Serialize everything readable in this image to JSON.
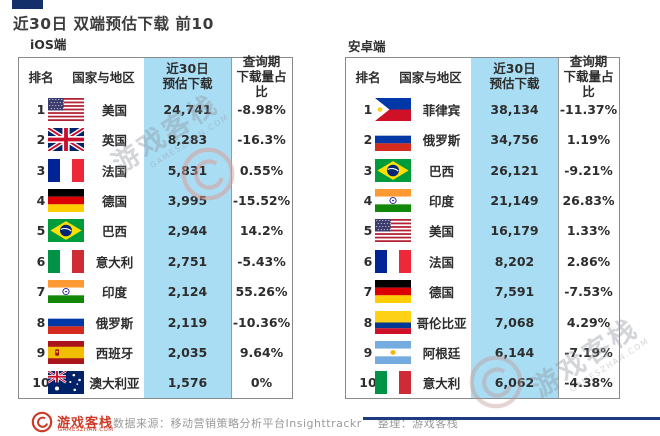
{
  "page": {
    "title": "近30日 双端预估下载 前10"
  },
  "colors": {
    "accent_navy": "#14306a",
    "highlight_blue": "#a9ddf3",
    "logo_red": "#cf3a28",
    "border_gray": "#8a8a8a",
    "watermark_gray": "#8d939c"
  },
  "headers": {
    "rank": "排名",
    "country": "国家与地区",
    "downloads_line1": "近30日",
    "downloads_line2": "预估下载",
    "share_line1": "查询期",
    "share_line2": "下载量占比"
  },
  "tables": [
    {
      "platform_label": "iOS端",
      "rows": [
        {
          "rank": "1",
          "flag": "us",
          "country": "美国",
          "downloads": "24,741",
          "share": "-8.98%"
        },
        {
          "rank": "2",
          "flag": "gb",
          "country": "英国",
          "downloads": "8,283",
          "share": "-16.3%"
        },
        {
          "rank": "3",
          "flag": "fr",
          "country": "法国",
          "downloads": "5,831",
          "share": "0.55%"
        },
        {
          "rank": "4",
          "flag": "de",
          "country": "德国",
          "downloads": "3,995",
          "share": "-15.52%"
        },
        {
          "rank": "5",
          "flag": "br",
          "country": "巴西",
          "downloads": "2,944",
          "share": "14.2%"
        },
        {
          "rank": "6",
          "flag": "it",
          "country": "意大利",
          "downloads": "2,751",
          "share": "-5.43%"
        },
        {
          "rank": "7",
          "flag": "in",
          "country": "印度",
          "downloads": "2,124",
          "share": "55.26%"
        },
        {
          "rank": "8",
          "flag": "ru",
          "country": "俄罗斯",
          "downloads": "2,119",
          "share": "-10.36%"
        },
        {
          "rank": "9",
          "flag": "es",
          "country": "西班牙",
          "downloads": "2,035",
          "share": "9.64%"
        },
        {
          "rank": "10",
          "flag": "au",
          "country": "澳大利亚",
          "downloads": "1,576",
          "share": "0%"
        }
      ]
    },
    {
      "platform_label": "安卓端",
      "rows": [
        {
          "rank": "1",
          "flag": "ph",
          "country": "菲律宾",
          "downloads": "38,134",
          "share": "-11.37%"
        },
        {
          "rank": "2",
          "flag": "ru",
          "country": "俄罗斯",
          "downloads": "34,756",
          "share": "1.19%"
        },
        {
          "rank": "3",
          "flag": "br",
          "country": "巴西",
          "downloads": "26,121",
          "share": "-9.21%"
        },
        {
          "rank": "4",
          "flag": "in",
          "country": "印度",
          "downloads": "21,149",
          "share": "26.83%"
        },
        {
          "rank": "5",
          "flag": "us",
          "country": "美国",
          "downloads": "16,179",
          "share": "1.33%"
        },
        {
          "rank": "6",
          "flag": "fr",
          "country": "法国",
          "downloads": "8,202",
          "share": "2.86%"
        },
        {
          "rank": "7",
          "flag": "de",
          "country": "德国",
          "downloads": "7,591",
          "share": "-7.53%"
        },
        {
          "rank": "8",
          "flag": "co",
          "country": "哥伦比亚",
          "downloads": "7,068",
          "share": "4.29%"
        },
        {
          "rank": "9",
          "flag": "ar",
          "country": "阿根廷",
          "downloads": "6,144",
          "share": "-7.19%"
        },
        {
          "rank": "10",
          "flag": "it",
          "country": "意大利",
          "downloads": "6,062",
          "share": "-4.38%"
        }
      ]
    }
  ],
  "watermark": {
    "text": "游戏客栈",
    "subtext": "GAMESZHAN.COM"
  },
  "footer": {
    "logo_text": "游戏客栈",
    "logo_subtext": "GAMESZHAN.COM",
    "source": "数据来源：移动营销策略分析平台Insighttrackr",
    "compiled": "整理：游戏客栈"
  },
  "chart_data": [
    {
      "type": "table",
      "title": "近30日 双端预估下载 前10 — iOS端",
      "columns": [
        "排名",
        "国家与地区",
        "近30日预估下载",
        "查询期下载量占比"
      ],
      "rows": [
        [
          1,
          "美国",
          24741,
          "-8.98%"
        ],
        [
          2,
          "英国",
          8283,
          "-16.3%"
        ],
        [
          3,
          "法国",
          5831,
          "0.55%"
        ],
        [
          4,
          "德国",
          3995,
          "-15.52%"
        ],
        [
          5,
          "巴西",
          2944,
          "14.2%"
        ],
        [
          6,
          "意大利",
          2751,
          "-5.43%"
        ],
        [
          7,
          "印度",
          2124,
          "55.26%"
        ],
        [
          8,
          "俄罗斯",
          2119,
          "-10.36%"
        ],
        [
          9,
          "西班牙",
          2035,
          "9.64%"
        ],
        [
          10,
          "澳大利亚",
          1576,
          "0%"
        ]
      ]
    },
    {
      "type": "table",
      "title": "近30日 双端预估下载 前10 — 安卓端",
      "columns": [
        "排名",
        "国家与地区",
        "近30日预估下载",
        "查询期下载量占比"
      ],
      "rows": [
        [
          1,
          "菲律宾",
          38134,
          "-11.37%"
        ],
        [
          2,
          "俄罗斯",
          34756,
          "1.19%"
        ],
        [
          3,
          "巴西",
          26121,
          "-9.21%"
        ],
        [
          4,
          "印度",
          21149,
          "26.83%"
        ],
        [
          5,
          "美国",
          16179,
          "1.33%"
        ],
        [
          6,
          "法国",
          8202,
          "2.86%"
        ],
        [
          7,
          "德国",
          7591,
          "-7.53%"
        ],
        [
          8,
          "哥伦比亚",
          7068,
          "4.29%"
        ],
        [
          9,
          "阿根廷",
          6144,
          "-7.19%"
        ],
        [
          10,
          "意大利",
          6062,
          "-4.38%"
        ]
      ]
    }
  ]
}
